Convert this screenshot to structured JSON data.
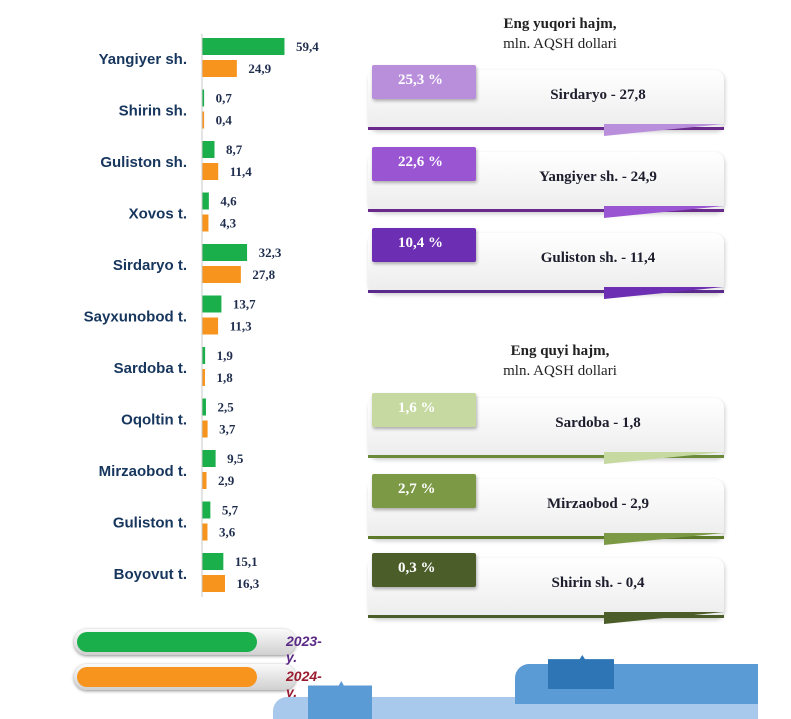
{
  "chart_data": {
    "type": "bar",
    "orientation": "horizontal",
    "categories": [
      "Yangiyer sh.",
      "Shirin sh.",
      "Guliston sh.",
      "Xovos t.",
      "Sirdaryo t.",
      "Sayxunobod t.",
      "Sardoba t.",
      "Oqoltin t.",
      "Mirzaobod t.",
      "Guliston t.",
      "Boyovut t."
    ],
    "series": [
      {
        "name": "2023- y.",
        "color": "#1aaf4b",
        "values": [
          59.4,
          0.7,
          8.7,
          4.6,
          32.3,
          13.7,
          1.9,
          2.5,
          9.5,
          5.7,
          15.1
        ],
        "labels": [
          "59,4",
          "0,7",
          "8,7",
          "4,6",
          "32,3",
          "13,7",
          "1,9",
          "2,5",
          "9,5",
          "5,7",
          "15,1"
        ]
      },
      {
        "name": "2024- y.",
        "color": "#f7941d",
        "values": [
          24.9,
          0.4,
          11.4,
          4.3,
          27.8,
          11.3,
          1.8,
          3.7,
          2.9,
          3.6,
          16.3
        ],
        "labels": [
          "24,9",
          "0,4",
          "11,4",
          "4,3",
          "27,8",
          "11,3",
          "1,8",
          "3,7",
          "2,9",
          "3,6",
          "16,3"
        ]
      }
    ],
    "legend_position": "bottom-left",
    "grid": false
  },
  "legend": [
    {
      "label": "2023- y.",
      "color": "#1aaf4b",
      "text_color": "#5b2a86"
    },
    {
      "label": "2024- y.",
      "color": "#f7941d",
      "text_color": "#9b1b30"
    }
  ],
  "top_panel": {
    "title": "Eng yuqori hajm,",
    "subtitle": "mln. AQSH dollari",
    "items": [
      {
        "percent": "25,3 %",
        "label": "Sirdaryo - 27,8",
        "color": "#b98fdc",
        "accent": "#6a2a8c"
      },
      {
        "percent": "22,6 %",
        "label": "Yangiyer sh. - 24,9",
        "color": "#9a55d3",
        "accent": "#6a2a8c"
      },
      {
        "percent": "10,4 %",
        "label": "Guliston sh.  - 11,4",
        "color": "#6c2fb3",
        "accent": "#5a2a8c"
      }
    ]
  },
  "bottom_panel": {
    "title": "Eng quyi hajm,",
    "subtitle": "mln. AQSH dollari",
    "items": [
      {
        "percent": "1,6 %",
        "label": "Sardoba -  1,8",
        "color": "#c5d9a0",
        "accent": "#6b8a3a"
      },
      {
        "percent": "2,7 %",
        "label": "Mirzaobod - 2,9",
        "color": "#7c9a45",
        "accent": "#5c7a2a"
      },
      {
        "percent": "0,3 %",
        "label": "Shirin sh. - 0,4",
        "color": "#4b5e2a",
        "accent": "#4b5e2a"
      }
    ]
  }
}
